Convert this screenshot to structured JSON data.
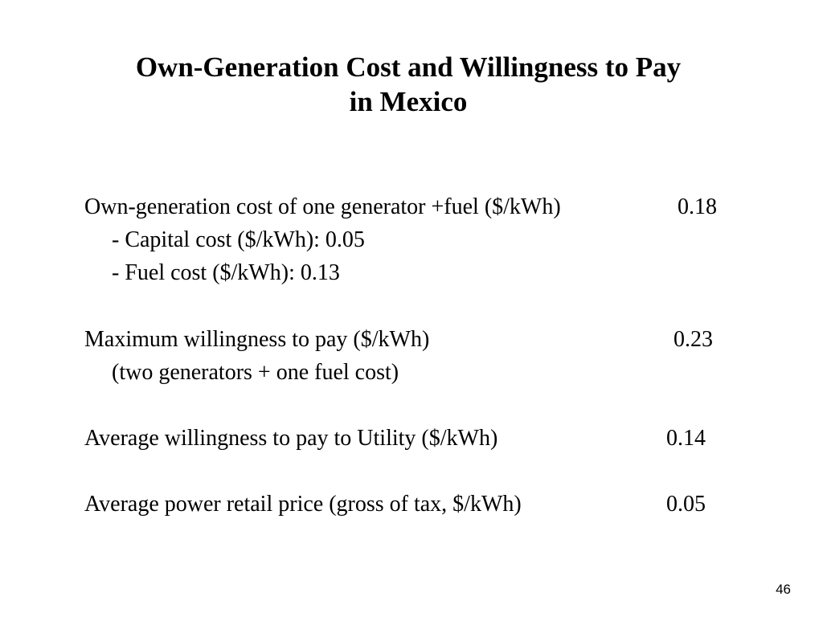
{
  "slide": {
    "title_line1": "Own-Generation Cost and Willingness to Pay",
    "title_line2": "in Mexico",
    "items": [
      {
        "label": "Own-generation cost of one generator +fuel ($/kWh)",
        "value": "0.18"
      },
      {
        "label": "- Capital cost ($/kWh): 0.05"
      },
      {
        "label": "- Fuel cost ($/kWh): 0.13"
      },
      {
        "label": "Maximum willingness to pay ($/kWh)",
        "value": "0.23"
      },
      {
        "label": "(two generators + one fuel cost)"
      },
      {
        "label": "Average willingness to pay to Utility ($/kWh)",
        "value": "0.14"
      },
      {
        "label": "Average power retail price (gross of tax, $/kWh)",
        "value": "0.05"
      }
    ],
    "page_number": "46"
  }
}
